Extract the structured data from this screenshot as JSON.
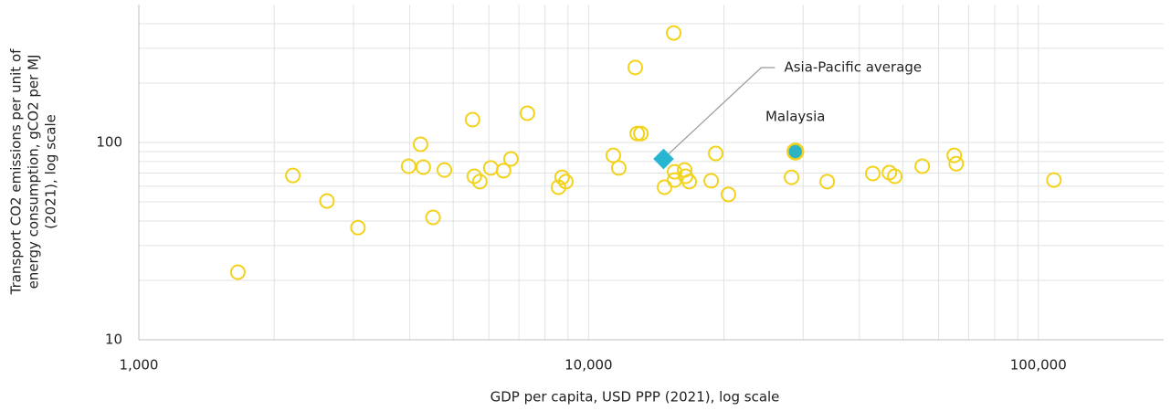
{
  "chart_data": {
    "type": "scatter",
    "x_label": "GDP per capita, USD PPP (2021), log scale",
    "y_label": [
      "Transport CO2 emissions per unit of",
      "energy consumption, gCO2 per MJ",
      "(2021), log scale"
    ],
    "log_x": true,
    "log_y": true,
    "grid": true,
    "xlim": [
      1000,
      190000
    ],
    "ylim": [
      10,
      500
    ],
    "xticks": [
      {
        "value": 1000,
        "label": "1,000"
      },
      {
        "value": 10000,
        "label": "10,000"
      },
      {
        "value": 100000,
        "label": "100,000"
      }
    ],
    "yticks": [
      10,
      100
    ],
    "x_minor_grid": [
      2000,
      3000,
      4000,
      5000,
      6000,
      7000,
      8000,
      9000,
      20000,
      30000,
      40000,
      50000,
      60000,
      70000,
      80000,
      90000
    ],
    "y_minor_grid": [
      20,
      30,
      40,
      50,
      60,
      70,
      80,
      90,
      200,
      300,
      400
    ],
    "series": [
      {
        "color": "#f2d21b",
        "x": [
          1660,
          2200,
          2620,
          3070,
          3980,
          4230,
          4290,
          4510,
          4780,
          5520,
          5570,
          5730,
          6060,
          6470,
          6720,
          7310,
          8570,
          8730,
          8900,
          11350,
          11670,
          12700,
          12830,
          13070,
          14750,
          15460,
          15530,
          15530,
          16350,
          16430,
          16740,
          18730,
          19170,
          20460,
          28270,
          33930,
          42850,
          46640,
          47960,
          55200,
          65020,
          65680,
          108300
        ],
        "values": [
          22,
          68,
          50.5,
          37,
          75.8,
          97.9,
          75,
          41.7,
          72.5,
          130.5,
          67.4,
          63.3,
          74.3,
          71.9,
          82.5,
          140.6,
          59.3,
          66.6,
          63.3,
          86,
          74.3,
          240,
          111,
          111,
          59.3,
          359,
          71,
          64.5,
          72.5,
          67.4,
          63.3,
          64,
          88,
          54.5,
          66.6,
          63.3,
          69.6,
          70.3,
          67.4,
          75.8,
          86,
          78,
          64.5
        ]
      }
    ],
    "highlight": {
      "label": "Malaysia",
      "x": 28820,
      "y": 89.9,
      "color": "#2fb3c4",
      "ring": "#f2d21b"
    },
    "average": {
      "label": "Asia-Pacific average",
      "x": 14680,
      "y": 82.5,
      "color": "#27b6d1"
    }
  }
}
